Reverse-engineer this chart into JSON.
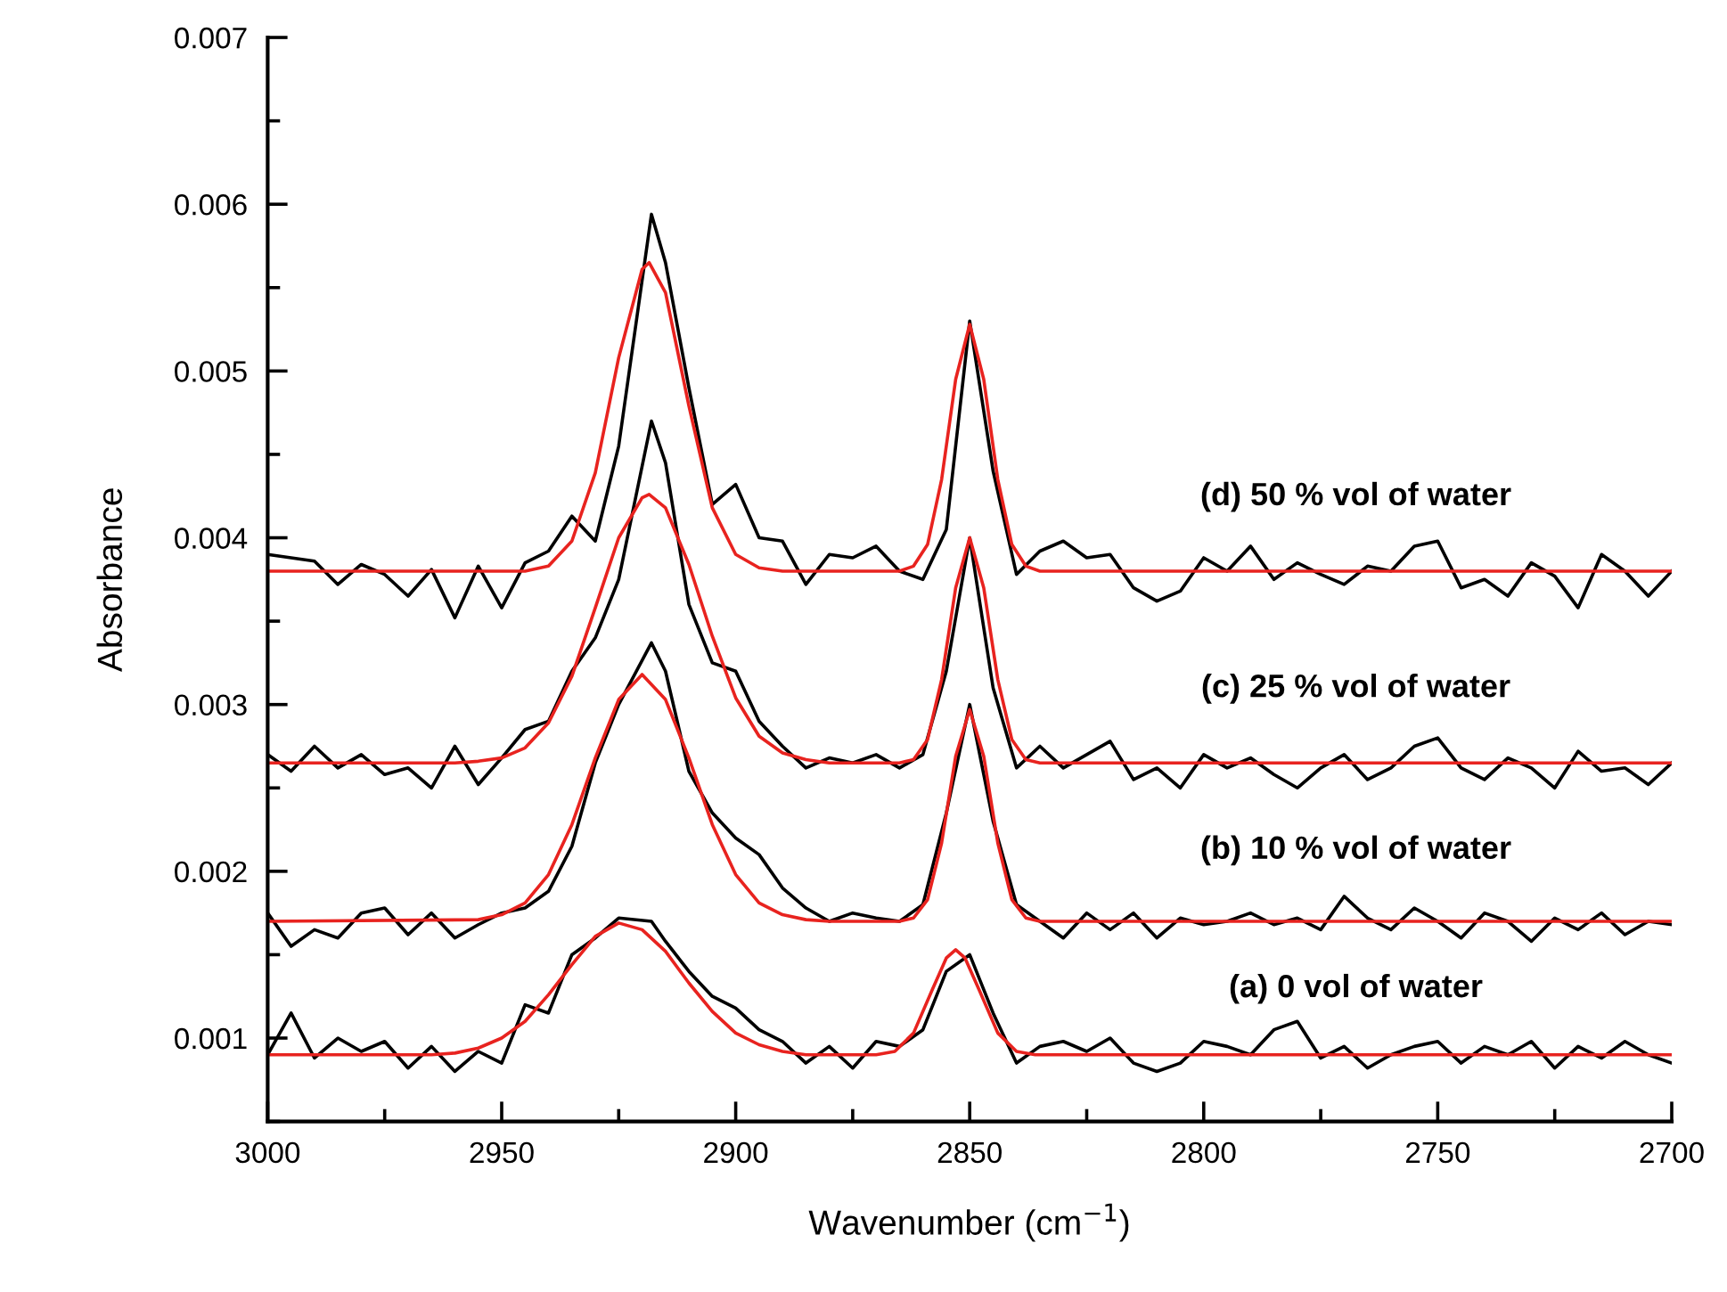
{
  "chart_data": {
    "type": "line",
    "xlabel": "Wavenumber (cm$^{−1}$)",
    "ylabel": "Absorbance",
    "xlim": [
      3000,
      2700
    ],
    "ylim": [
      0.0005,
      0.007
    ],
    "xticks": [
      3000,
      {
        "value": 2975,
        "label": null
      },
      2950,
      {
        "value": 2925,
        "label": null
      },
      2900,
      {
        "value": 2875,
        "label": null
      },
      2850,
      {
        "value": 2825,
        "label": null
      },
      2800,
      {
        "value": 2775,
        "label": null
      },
      2750,
      {
        "value": 2725,
        "label": null
      },
      2700
    ],
    "yticks": [
      {
        "value": 0.0005,
        "label": null
      },
      0.001,
      {
        "value": 0.0015,
        "label": null
      },
      0.002,
      {
        "value": 0.0025,
        "label": null
      },
      0.003,
      {
        "value": 0.0035,
        "label": null
      },
      0.004,
      {
        "value": 0.0045,
        "label": null
      },
      0.005,
      {
        "value": 0.0055,
        "label": null
      },
      0.006,
      {
        "value": 0.0065,
        "label": null
      },
      0.007
    ],
    "grid": false,
    "legend": false,
    "marker": "none",
    "line_style": "solid",
    "series": [
      {
        "name": "(d) 50 % vol of water",
        "color": "#000000",
        "x": [
          3000,
          2995,
          2990,
          2985,
          2980,
          2975,
          2970,
          2965,
          2960,
          2955,
          2950,
          2945,
          2940,
          2935,
          2930,
          2925,
          2918,
          2915,
          2910,
          2905,
          2900,
          2895,
          2890,
          2885,
          2880,
          2875,
          2870,
          2865,
          2860,
          2855,
          2850,
          2845,
          2840,
          2835,
          2830,
          2825,
          2820,
          2815,
          2810,
          2805,
          2800,
          2795,
          2790,
          2785,
          2780,
          2775,
          2770,
          2765,
          2760,
          2755,
          2750,
          2745,
          2740,
          2735,
          2730,
          2725,
          2720,
          2715,
          2710,
          2705,
          2700
        ],
        "values": [
          0.0039,
          0.00388,
          0.00386,
          0.00372,
          0.00384,
          0.00378,
          0.00365,
          0.00381,
          0.00352,
          0.00383,
          0.00358,
          0.00385,
          0.00392,
          0.00413,
          0.00398,
          0.00455,
          0.00594,
          0.00565,
          0.0049,
          0.0042,
          0.00432,
          0.004,
          0.00398,
          0.00372,
          0.0039,
          0.00388,
          0.00395,
          0.0038,
          0.00375,
          0.00405,
          0.0053,
          0.0044,
          0.00378,
          0.00392,
          0.00398,
          0.00388,
          0.0039,
          0.0037,
          0.00362,
          0.00368,
          0.00388,
          0.0038,
          0.00395,
          0.00375,
          0.00385,
          0.00378,
          0.00372,
          0.00383,
          0.0038,
          0.00395,
          0.00398,
          0.0037,
          0.00375,
          0.00365,
          0.00385,
          0.00377,
          0.00358,
          0.0039,
          0.0038,
          0.00365,
          0.0038
        ]
      },
      {
        "name": "(c) 25 % vol of water",
        "color": "#000000",
        "x": [
          3000,
          2995,
          2990,
          2985,
          2980,
          2975,
          2970,
          2965,
          2960,
          2955,
          2950,
          2945,
          2940,
          2935,
          2930,
          2925,
          2918,
          2915,
          2910,
          2905,
          2900,
          2895,
          2890,
          2885,
          2880,
          2875,
          2870,
          2865,
          2860,
          2855,
          2850,
          2845,
          2840,
          2835,
          2830,
          2825,
          2820,
          2815,
          2810,
          2805,
          2800,
          2795,
          2790,
          2785,
          2780,
          2775,
          2770,
          2765,
          2760,
          2755,
          2750,
          2745,
          2740,
          2735,
          2730,
          2725,
          2720,
          2715,
          2710,
          2705,
          2700
        ],
        "values": [
          0.0027,
          0.0026,
          0.00275,
          0.00262,
          0.0027,
          0.00258,
          0.00262,
          0.0025,
          0.00275,
          0.00252,
          0.00268,
          0.00285,
          0.0029,
          0.0032,
          0.0034,
          0.00375,
          0.0047,
          0.00445,
          0.0036,
          0.00325,
          0.0032,
          0.0029,
          0.00275,
          0.00262,
          0.00268,
          0.00265,
          0.0027,
          0.00262,
          0.0027,
          0.0032,
          0.004,
          0.0031,
          0.00262,
          0.00275,
          0.00262,
          0.0027,
          0.00278,
          0.00255,
          0.00262,
          0.0025,
          0.0027,
          0.00262,
          0.00268,
          0.00258,
          0.0025,
          0.00262,
          0.0027,
          0.00255,
          0.00262,
          0.00275,
          0.0028,
          0.00262,
          0.00255,
          0.00268,
          0.00262,
          0.0025,
          0.00272,
          0.0026,
          0.00262,
          0.00252,
          0.00265
        ]
      },
      {
        "name": "(b) 10 % vol of water",
        "color": "#000000",
        "x": [
          3000,
          2995,
          2990,
          2985,
          2980,
          2975,
          2970,
          2965,
          2960,
          2955,
          2950,
          2945,
          2940,
          2935,
          2930,
          2925,
          2918,
          2915,
          2910,
          2905,
          2900,
          2895,
          2890,
          2885,
          2880,
          2875,
          2870,
          2865,
          2860,
          2855,
          2850,
          2845,
          2840,
          2835,
          2830,
          2825,
          2820,
          2815,
          2810,
          2805,
          2800,
          2795,
          2790,
          2785,
          2780,
          2775,
          2770,
          2765,
          2760,
          2755,
          2750,
          2745,
          2740,
          2735,
          2730,
          2725,
          2720,
          2715,
          2710,
          2705,
          2700
        ],
        "values": [
          0.00175,
          0.00155,
          0.00165,
          0.0016,
          0.00175,
          0.00178,
          0.00162,
          0.00175,
          0.0016,
          0.00168,
          0.00175,
          0.00178,
          0.00188,
          0.00215,
          0.00265,
          0.003,
          0.00337,
          0.0032,
          0.0026,
          0.00235,
          0.0022,
          0.0021,
          0.0019,
          0.00178,
          0.0017,
          0.00175,
          0.00172,
          0.0017,
          0.0018,
          0.00235,
          0.003,
          0.0023,
          0.0018,
          0.0017,
          0.0016,
          0.00175,
          0.00165,
          0.00175,
          0.0016,
          0.00172,
          0.00168,
          0.0017,
          0.00175,
          0.00168,
          0.00172,
          0.00165,
          0.00185,
          0.00172,
          0.00165,
          0.00178,
          0.0017,
          0.0016,
          0.00175,
          0.0017,
          0.00158,
          0.00172,
          0.00165,
          0.00175,
          0.00162,
          0.0017,
          0.00168
        ]
      },
      {
        "name": "(a) 0 vol of water",
        "color": "#000000",
        "x": [
          3000,
          2995,
          2990,
          2985,
          2980,
          2975,
          2970,
          2965,
          2960,
          2955,
          2950,
          2945,
          2940,
          2935,
          2930,
          2925,
          2918,
          2915,
          2910,
          2905,
          2900,
          2895,
          2890,
          2885,
          2880,
          2875,
          2870,
          2865,
          2860,
          2855,
          2850,
          2845,
          2840,
          2835,
          2830,
          2825,
          2820,
          2815,
          2810,
          2805,
          2800,
          2795,
          2790,
          2785,
          2780,
          2775,
          2770,
          2765,
          2760,
          2755,
          2750,
          2745,
          2740,
          2735,
          2730,
          2725,
          2720,
          2715,
          2710,
          2705,
          2700
        ],
        "values": [
          0.0009,
          0.00115,
          0.00088,
          0.001,
          0.00092,
          0.00098,
          0.00082,
          0.00095,
          0.0008,
          0.00092,
          0.00085,
          0.0012,
          0.00115,
          0.0015,
          0.0016,
          0.00172,
          0.0017,
          0.00158,
          0.0014,
          0.00125,
          0.00118,
          0.00105,
          0.00098,
          0.00085,
          0.00095,
          0.00082,
          0.00098,
          0.00095,
          0.00105,
          0.0014,
          0.0015,
          0.00115,
          0.00085,
          0.00095,
          0.00098,
          0.00092,
          0.001,
          0.00085,
          0.0008,
          0.00085,
          0.00098,
          0.00095,
          0.0009,
          0.00105,
          0.0011,
          0.00088,
          0.00095,
          0.00082,
          0.0009,
          0.00095,
          0.00098,
          0.00085,
          0.00095,
          0.0009,
          0.00098,
          0.00082,
          0.00095,
          0.00088,
          0.00098,
          0.0009,
          0.00085
        ]
      },
      {
        "color": "#e8231f",
        "x": [
          3000,
          2945,
          2940,
          2935,
          2930,
          2925,
          2920,
          2918.5,
          2915,
          2910,
          2905,
          2900,
          2895,
          2890,
          2865,
          2862,
          2859,
          2856,
          2853,
          2850,
          2847,
          2844,
          2841,
          2838,
          2835,
          2700
        ],
        "values": [
          0.0038,
          0.0038,
          0.00383,
          0.00398,
          0.00439,
          0.00508,
          0.00561,
          0.00565,
          0.00547,
          0.00479,
          0.00418,
          0.0039,
          0.00382,
          0.0038,
          0.0038,
          0.00383,
          0.00396,
          0.00435,
          0.00495,
          0.00528,
          0.00495,
          0.00435,
          0.00396,
          0.00383,
          0.0038,
          0.0038
        ]
      },
      {
        "color": "#e8231f",
        "x": [
          3000,
          2960,
          2955,
          2950,
          2945,
          2940,
          2935,
          2930,
          2925,
          2920,
          2918.5,
          2915,
          2910,
          2905,
          2900,
          2895,
          2890,
          2885,
          2880,
          2865,
          2862,
          2859,
          2856,
          2853,
          2850,
          2847,
          2844,
          2841,
          2838,
          2835,
          2700
        ],
        "values": [
          0.00265,
          0.00265,
          0.00266,
          0.00268,
          0.00274,
          0.00289,
          0.00317,
          0.00358,
          0.004,
          0.00424,
          0.00426,
          0.00418,
          0.00384,
          0.00341,
          0.00304,
          0.00281,
          0.00271,
          0.00267,
          0.00265,
          0.00265,
          0.00267,
          0.00279,
          0.00315,
          0.0037,
          0.004,
          0.0037,
          0.00315,
          0.00279,
          0.00267,
          0.00265,
          0.00265
        ]
      },
      {
        "color": "#e8231f",
        "x": [
          3000,
          2955,
          2950,
          2945,
          2940,
          2935,
          2930,
          2925,
          2920,
          2915,
          2910,
          2905,
          2900,
          2895,
          2890,
          2885,
          2880,
          2865,
          2862,
          2859,
          2856,
          2853,
          2850,
          2847,
          2844,
          2841,
          2838,
          2835,
          2700
        ],
        "values": [
          0.0017,
          0.00171,
          0.00174,
          0.00181,
          0.00198,
          0.00228,
          0.00268,
          0.00303,
          0.00318,
          0.00303,
          0.00268,
          0.00228,
          0.00198,
          0.00181,
          0.00174,
          0.00171,
          0.0017,
          0.0017,
          0.00172,
          0.00183,
          0.00217,
          0.00269,
          0.00297,
          0.00269,
          0.00217,
          0.00183,
          0.00172,
          0.0017,
          0.0017
        ]
      },
      {
        "color": "#e8231f",
        "x": [
          3000,
          2965,
          2960,
          2955,
          2950,
          2945,
          2940,
          2935,
          2930,
          2925,
          2920,
          2915,
          2910,
          2905,
          2900,
          2895,
          2890,
          2885,
          2870,
          2866,
          2862,
          2858,
          2855,
          2853,
          2851,
          2848,
          2844,
          2840,
          2836,
          2700
        ],
        "values": [
          0.0009,
          0.0009,
          0.00091,
          0.00094,
          0.001,
          0.0011,
          0.00126,
          0.00144,
          0.00161,
          0.00169,
          0.00165,
          0.00152,
          0.00133,
          0.00116,
          0.00103,
          0.00096,
          0.00092,
          0.0009,
          0.0009,
          0.00092,
          0.00103,
          0.00129,
          0.00148,
          0.00153,
          0.00148,
          0.00129,
          0.00103,
          0.00092,
          0.0009,
          0.0009
        ]
      }
    ]
  }
}
